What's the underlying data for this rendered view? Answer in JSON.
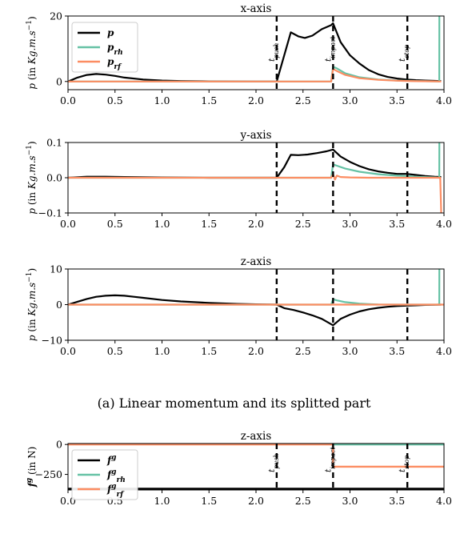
{
  "caption": "(a) Linear momentum and its splitted part",
  "colors": {
    "total": "#000000",
    "rh": "#66c2a5",
    "rf": "#fc8d62"
  },
  "chart_data": [
    {
      "type": "line",
      "title": "x-axis",
      "ylabel": "p (in Kg.m.s⁻¹)",
      "xlim": [
        0.0,
        4.0
      ],
      "ylim": [
        -2.5,
        20
      ],
      "xticks": [
        "0.0",
        "0.5",
        "1.0",
        "1.5",
        "2.0",
        "2.5",
        "3.0",
        "3.5",
        "4.0"
      ],
      "yticks": [
        {
          "value": 0,
          "label": "0"
        },
        {
          "value": 20,
          "label": "20"
        }
      ],
      "legend": {
        "position": "top-left",
        "entries": [
          "p",
          "p_rh",
          "p_rf"
        ]
      },
      "events": [
        {
          "x": 2.22,
          "label": "t_push"
        },
        {
          "x": 2.82,
          "label": "t_impact"
        },
        {
          "x": 3.61,
          "label": "t_stop"
        }
      ],
      "series": [
        {
          "name": "p",
          "color": "#000000",
          "width": 2.2,
          "x": [
            0,
            0.1,
            0.2,
            0.3,
            0.4,
            0.5,
            0.6,
            0.8,
            1.0,
            1.2,
            1.5,
            2.0,
            2.2,
            2.22,
            2.3,
            2.37,
            2.45,
            2.52,
            2.6,
            2.7,
            2.8,
            2.82,
            2.9,
            3.0,
            3.1,
            3.2,
            3.3,
            3.4,
            3.5,
            3.6,
            3.7,
            3.8,
            3.9,
            3.97
          ],
          "y": [
            0,
            1.2,
            2.0,
            2.3,
            2.1,
            1.7,
            1.2,
            0.6,
            0.3,
            0.15,
            0.05,
            0,
            0,
            0,
            8,
            15,
            13.8,
            13.3,
            14,
            16,
            17.2,
            17.8,
            12,
            8,
            5.5,
            3.5,
            2.2,
            1.4,
            0.9,
            0.6,
            0.4,
            0.3,
            0.2,
            0.1
          ]
        },
        {
          "name": "p_rh",
          "color": "#66c2a5",
          "width": 2.2,
          "x": [
            0,
            2.8,
            2.82,
            2.86,
            2.95,
            3.1,
            3.3,
            3.5,
            3.7,
            3.9,
            3.95,
            3.951,
            3.952
          ],
          "y": [
            0,
            0,
            4.5,
            4.0,
            2.5,
            1.3,
            0.6,
            0.3,
            0.15,
            0.05,
            0,
            20,
            22
          ]
        },
        {
          "name": "p_rf",
          "color": "#fc8d62",
          "width": 2.2,
          "x": [
            0,
            2.8,
            2.82,
            2.86,
            2.95,
            3.1,
            3.3,
            3.5,
            3.7,
            3.9,
            3.97
          ],
          "y": [
            0,
            0,
            3.8,
            3.2,
            2.0,
            1.0,
            0.5,
            0.25,
            0.1,
            0.05,
            0
          ]
        }
      ]
    },
    {
      "type": "line",
      "title": "y-axis",
      "ylabel": "p (in Kg.m.s⁻¹)",
      "xlim": [
        0.0,
        4.0
      ],
      "ylim": [
        -0.1,
        0.1
      ],
      "xticks": [
        "0.0",
        "0.5",
        "1.0",
        "1.5",
        "2.0",
        "2.5",
        "3.0",
        "3.5",
        "4.0"
      ],
      "yticks": [
        {
          "value": 0.1,
          "label": "0.1"
        },
        {
          "value": 0,
          "label": "0.0"
        },
        {
          "value": -0.1,
          "label": "−0.1"
        }
      ],
      "events": [
        {
          "x": 2.22,
          "label": ""
        },
        {
          "x": 2.82,
          "label": ""
        },
        {
          "x": 3.61,
          "label": ""
        }
      ],
      "series": [
        {
          "name": "p",
          "color": "#000000",
          "width": 2.2,
          "x": [
            0,
            0.2,
            0.4,
            0.6,
            1.0,
            1.5,
            2.0,
            2.22,
            2.3,
            2.37,
            2.45,
            2.55,
            2.65,
            2.75,
            2.82,
            2.9,
            3.0,
            3.1,
            3.2,
            3.3,
            3.4,
            3.5,
            3.6,
            3.7,
            3.8,
            3.9,
            3.97
          ],
          "y": [
            0,
            0.003,
            0.003,
            0.002,
            0.001,
            0,
            0,
            0,
            0.03,
            0.065,
            0.064,
            0.066,
            0.07,
            0.075,
            0.08,
            0.06,
            0.045,
            0.033,
            0.024,
            0.018,
            0.014,
            0.011,
            0.011,
            0.008,
            0.005,
            0.003,
            0.002
          ]
        },
        {
          "name": "p_rh",
          "color": "#66c2a5",
          "width": 2.2,
          "x": [
            0,
            2.8,
            2.82,
            2.86,
            2.95,
            3.1,
            3.3,
            3.5,
            3.6,
            3.7,
            3.9,
            3.95,
            3.951,
            3.952
          ],
          "y": [
            0,
            0,
            0.038,
            0.034,
            0.026,
            0.017,
            0.01,
            0.006,
            0.005,
            0.003,
            0.001,
            0,
            0.1,
            0.12
          ]
        },
        {
          "name": "p_rf",
          "color": "#fc8d62",
          "width": 2.2,
          "x": [
            0,
            2.8,
            2.82,
            2.84,
            2.86,
            2.9,
            3.0,
            3.2,
            3.5,
            3.9,
            3.96,
            3.97,
            3.972
          ],
          "y": [
            0,
            0,
            0.01,
            -0.005,
            0.006,
            0.002,
            0.001,
            0,
            0,
            0,
            0,
            -0.1,
            -0.12
          ]
        }
      ]
    },
    {
      "type": "line",
      "title": "z-axis",
      "ylabel": "p (in Kg.m.s⁻¹)",
      "xlim": [
        0.0,
        4.0
      ],
      "ylim": [
        -10,
        10
      ],
      "xticks": [
        "0.0",
        "0.5",
        "1.0",
        "1.5",
        "2.0",
        "2.5",
        "3.0",
        "3.5",
        "4.0"
      ],
      "yticks": [
        {
          "value": 10,
          "label": "10"
        },
        {
          "value": 0,
          "label": "0"
        },
        {
          "value": -10,
          "label": "−10"
        }
      ],
      "events": [
        {
          "x": 2.22,
          "label": ""
        },
        {
          "x": 2.82,
          "label": ""
        },
        {
          "x": 3.61,
          "label": ""
        }
      ],
      "series": [
        {
          "name": "p",
          "color": "#000000",
          "width": 2.2,
          "x": [
            0,
            0.1,
            0.2,
            0.3,
            0.4,
            0.5,
            0.6,
            0.7,
            0.8,
            1.0,
            1.2,
            1.5,
            1.8,
            2.0,
            2.22,
            2.3,
            2.4,
            2.5,
            2.6,
            2.7,
            2.82,
            2.9,
            3.0,
            3.1,
            3.2,
            3.3,
            3.4,
            3.5,
            3.6,
            3.7,
            3.8,
            3.97
          ],
          "y": [
            0,
            0.8,
            1.6,
            2.2,
            2.5,
            2.6,
            2.5,
            2.2,
            1.9,
            1.3,
            0.9,
            0.5,
            0.2,
            0.1,
            0,
            -1,
            -1.5,
            -2.2,
            -3,
            -4,
            -5.8,
            -4,
            -2.8,
            -1.9,
            -1.3,
            -0.9,
            -0.6,
            -0.4,
            -0.3,
            -0.2,
            -0.1,
            0
          ]
        },
        {
          "name": "p_rh",
          "color": "#66c2a5",
          "width": 2.2,
          "x": [
            0,
            2.8,
            2.82,
            2.86,
            2.95,
            3.1,
            3.2,
            3.3,
            3.5,
            3.7,
            3.9,
            3.95,
            3.951,
            3.952
          ],
          "y": [
            0,
            0,
            1.5,
            1.2,
            0.7,
            0.3,
            0.15,
            0.05,
            0,
            0,
            0,
            0,
            10,
            11
          ]
        },
        {
          "name": "p_rf",
          "color": "#fc8d62",
          "width": 2.2,
          "x": [
            0,
            4.0
          ],
          "y": [
            0,
            0
          ]
        }
      ]
    },
    {
      "type": "line",
      "title": "z-axis",
      "ylabel": "f^g (in N)",
      "xlim": [
        0.0,
        4.0
      ],
      "ylim": [
        -380,
        8
      ],
      "xticks": [
        "0.0",
        "0.5",
        "1.0",
        "1.5",
        "2.0",
        "2.5",
        "3.0",
        "3.5",
        "4.0"
      ],
      "yticks": [
        {
          "value": 0,
          "label": "0"
        },
        {
          "value": -250,
          "label": "−250"
        }
      ],
      "legend": {
        "position": "top-left",
        "entries": [
          "f^g",
          "f_rh^g",
          "f_rf^g"
        ]
      },
      "events": [
        {
          "x": 2.22,
          "label": "t_push"
        },
        {
          "x": 2.82,
          "label": "t_impact"
        },
        {
          "x": 3.61,
          "label": "t_stop"
        }
      ],
      "series": [
        {
          "name": "f^g",
          "color": "#000000",
          "width": 2.4,
          "x": [
            0,
            4.0
          ],
          "y": [
            -370,
            -370
          ]
        },
        {
          "name": "f_rh^g",
          "color": "#66c2a5",
          "width": 2.4,
          "x": [
            2.82,
            4.0
          ],
          "y": [
            0,
            0
          ]
        },
        {
          "name": "f_rf^g",
          "color": "#fc8d62",
          "width": 2.4,
          "x": [
            0,
            2.82,
            2.82,
            4.0
          ],
          "y": [
            0,
            0,
            -185,
            -185
          ]
        }
      ]
    }
  ]
}
